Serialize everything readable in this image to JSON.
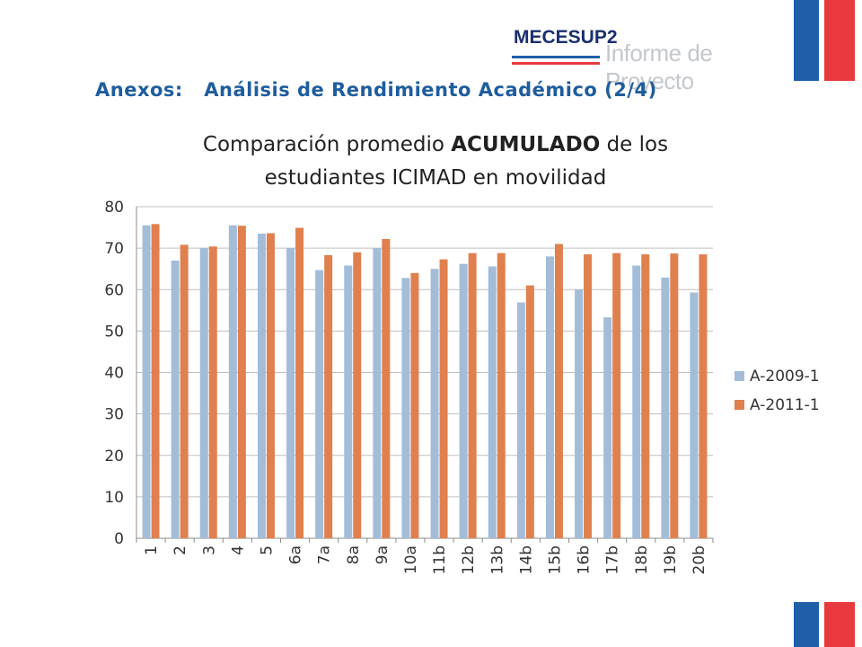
{
  "header": {
    "logo_brand": "MECESUP2",
    "logo_sub": "Informe de Proyecto",
    "section_title": "Anexos:   Análisis de Rendimiento Académico (2/4)"
  },
  "chart_title": {
    "line1_pre": "Comparación promedio ",
    "line1_bold": "ACUMULADO",
    "line1_post": " de los",
    "line2": "estudiantes ICIMAD en movilidad"
  },
  "colors": {
    "series_2009": "#a3bdd9",
    "series_2011": "#e0804f",
    "flag_blue": "#1f5fa8",
    "flag_red": "#e8393e",
    "grid": "#bfbfbf"
  },
  "chart_data": {
    "type": "bar",
    "title": "",
    "xlabel": "",
    "ylabel": "",
    "ylim": [
      0,
      80
    ],
    "yticks": [
      0,
      10,
      20,
      30,
      40,
      50,
      60,
      70,
      80
    ],
    "grid": true,
    "legend_position": "right",
    "categories": [
      "1",
      "2",
      "3",
      "4",
      "5",
      "6a",
      "7a",
      "8a",
      "9a",
      "10a",
      "11b",
      "12b",
      "13b",
      "14b",
      "15b",
      "16b",
      "17b",
      "18b",
      "19b",
      "20b"
    ],
    "series": [
      {
        "name": "A-2009-1",
        "values": [
          75.5,
          67,
          70,
          75.5,
          73.5,
          70,
          64.7,
          65.8,
          70,
          62.8,
          65,
          66.2,
          65.6,
          56.9,
          68,
          60,
          53.3,
          65.8,
          62.9,
          59.3
        ]
      },
      {
        "name": "A-2011-1",
        "values": [
          75.8,
          70.8,
          70.4,
          75.4,
          73.6,
          74.9,
          68.3,
          69,
          72.2,
          64,
          67.3,
          68.8,
          68.8,
          61,
          71,
          68.5,
          68.8,
          68.5,
          68.7,
          68.5
        ]
      }
    ]
  }
}
